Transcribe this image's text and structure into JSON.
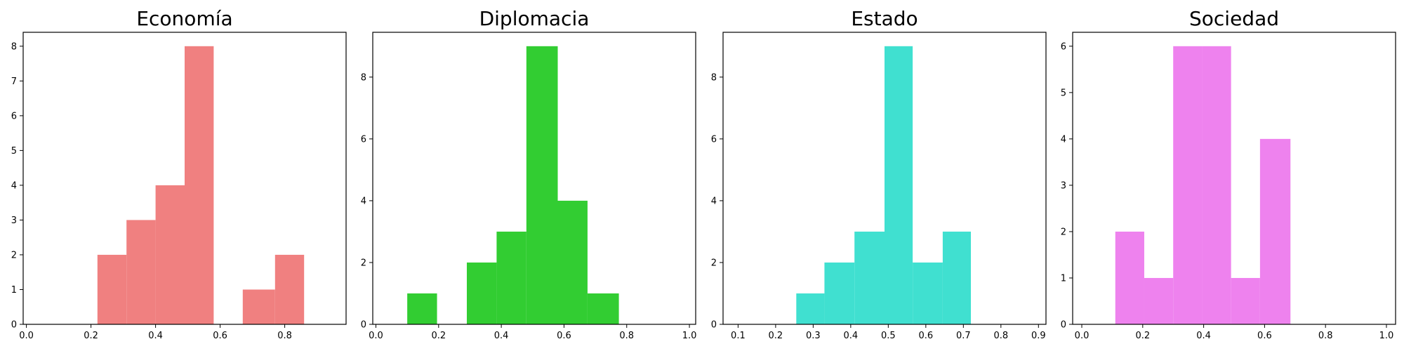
{
  "chart_data": [
    {
      "type": "bar",
      "title": "Economía",
      "color": "#F08080",
      "bins": [
        {
          "x0": 0.22,
          "x1": 0.31,
          "count": 2
        },
        {
          "x0": 0.31,
          "x1": 0.4,
          "count": 3
        },
        {
          "x0": 0.4,
          "x1": 0.49,
          "count": 4
        },
        {
          "x0": 0.49,
          "x1": 0.58,
          "count": 8
        },
        {
          "x0": 0.58,
          "x1": 0.67,
          "count": 0
        },
        {
          "x0": 0.67,
          "x1": 0.77,
          "count": 1
        },
        {
          "x0": 0.77,
          "x1": 0.86,
          "count": 2
        }
      ],
      "xlim": [
        -0.01,
        0.99
      ],
      "ylim": [
        0,
        8.4
      ],
      "xticks": [
        "0.0",
        "0.2",
        "0.4",
        "0.6",
        "0.8"
      ],
      "xtick_values": [
        0.0,
        0.2,
        0.4,
        0.6,
        0.8
      ],
      "yticks": [
        "0",
        "1",
        "2",
        "3",
        "4",
        "5",
        "6",
        "7",
        "8"
      ],
      "ytick_values": [
        0,
        1,
        2,
        3,
        4,
        5,
        6,
        7,
        8
      ]
    },
    {
      "type": "bar",
      "title": "Diplomacia",
      "color": "#32CD32",
      "bins": [
        {
          "x0": 0.1,
          "x1": 0.195,
          "count": 1
        },
        {
          "x0": 0.195,
          "x1": 0.29,
          "count": 0
        },
        {
          "x0": 0.29,
          "x1": 0.385,
          "count": 2
        },
        {
          "x0": 0.385,
          "x1": 0.48,
          "count": 3
        },
        {
          "x0": 0.48,
          "x1": 0.58,
          "count": 9
        },
        {
          "x0": 0.58,
          "x1": 0.675,
          "count": 4
        },
        {
          "x0": 0.675,
          "x1": 0.775,
          "count": 1
        }
      ],
      "xlim": [
        -0.01,
        1.02
      ],
      "ylim": [
        0,
        9.45
      ],
      "xticks": [
        "0.0",
        "0.2",
        "0.4",
        "0.6",
        "0.8",
        "1.0"
      ],
      "xtick_values": [
        0.0,
        0.2,
        0.4,
        0.6,
        0.8,
        1.0
      ],
      "yticks": [
        "0",
        "2",
        "4",
        "6",
        "8"
      ],
      "ytick_values": [
        0,
        2,
        4,
        6,
        8
      ]
    },
    {
      "type": "bar",
      "title": "Estado",
      "color": "#40E0D0",
      "bins": [
        {
          "x0": 0.255,
          "x1": 0.33,
          "count": 1
        },
        {
          "x0": 0.33,
          "x1": 0.41,
          "count": 2
        },
        {
          "x0": 0.41,
          "x1": 0.49,
          "count": 3
        },
        {
          "x0": 0.49,
          "x1": 0.565,
          "count": 9
        },
        {
          "x0": 0.565,
          "x1": 0.645,
          "count": 2
        },
        {
          "x0": 0.645,
          "x1": 0.72,
          "count": 3
        }
      ],
      "xlim": [
        0.06,
        0.92
      ],
      "ylim": [
        0,
        9.45
      ],
      "xticks": [
        "0.1",
        "0.2",
        "0.3",
        "0.4",
        "0.5",
        "0.6",
        "0.7",
        "0.8",
        "0.9"
      ],
      "xtick_values": [
        0.1,
        0.2,
        0.3,
        0.4,
        0.5,
        0.6,
        0.7,
        0.8,
        0.9
      ],
      "yticks": [
        "0",
        "2",
        "4",
        "6",
        "8"
      ],
      "ytick_values": [
        0,
        2,
        4,
        6,
        8
      ]
    },
    {
      "type": "bar",
      "title": "Sociedad",
      "color": "#EE82EE",
      "bins": [
        {
          "x0": 0.11,
          "x1": 0.205,
          "count": 2
        },
        {
          "x0": 0.205,
          "x1": 0.3,
          "count": 1
        },
        {
          "x0": 0.3,
          "x1": 0.395,
          "count": 6
        },
        {
          "x0": 0.395,
          "x1": 0.49,
          "count": 6
        },
        {
          "x0": 0.49,
          "x1": 0.585,
          "count": 1
        },
        {
          "x0": 0.585,
          "x1": 0.685,
          "count": 4
        }
      ],
      "xlim": [
        -0.03,
        1.03
      ],
      "ylim": [
        0,
        6.3
      ],
      "xticks": [
        "0.0",
        "0.2",
        "0.4",
        "0.6",
        "0.8",
        "1.0"
      ],
      "xtick_values": [
        0.0,
        0.2,
        0.4,
        0.6,
        0.8,
        1.0
      ],
      "yticks": [
        "0",
        "1",
        "2",
        "3",
        "4",
        "5",
        "6"
      ],
      "ytick_values": [
        0,
        1,
        2,
        3,
        4,
        5,
        6
      ]
    }
  ]
}
